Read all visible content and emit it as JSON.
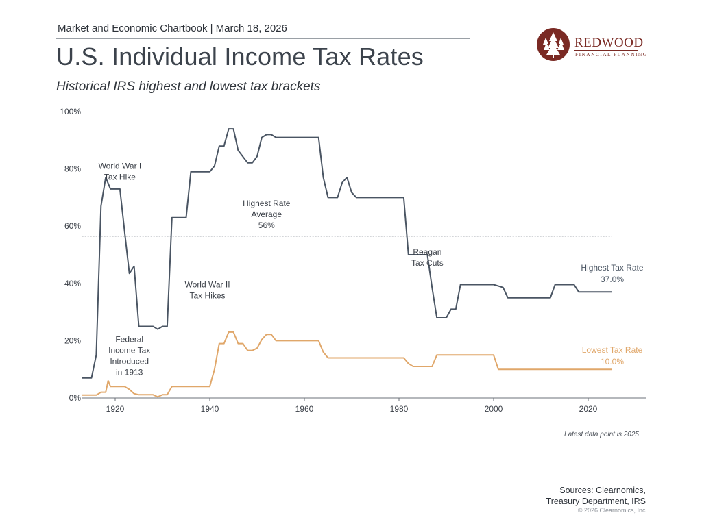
{
  "header": {
    "kicker": "Market and Economic Chartbook | March 18, 2026",
    "title": "U.S. Individual Income Tax Rates",
    "subtitle": "Historical IRS highest and lowest tax brackets"
  },
  "logo": {
    "brand": "REDWOOD",
    "tagline": "FINANCIAL PLANNING",
    "icon": "redwood-trees-icon",
    "color": "#7a2a24"
  },
  "colors": {
    "highest": "#4a5563",
    "lowest": "#e0a76a",
    "average_line": "#8a9099",
    "axis": "#6b7078"
  },
  "chart_data": {
    "type": "line",
    "title": "U.S. Individual Income Tax Rates",
    "xlabel": "",
    "ylabel": "",
    "xlim": [
      1913,
      2032
    ],
    "ylim": [
      0,
      100
    ],
    "x_ticks": [
      1920,
      1940,
      1960,
      1980,
      2000,
      2020
    ],
    "y_ticks": [
      0,
      20,
      40,
      60,
      80,
      100
    ],
    "y_tick_labels": [
      "0%",
      "20%",
      "40%",
      "60%",
      "80%",
      "100%"
    ],
    "grid": false,
    "series": [
      {
        "name": "Highest Tax Rate",
        "end_label": "37.0%",
        "points": [
          [
            1913,
            7
          ],
          [
            1915,
            7
          ],
          [
            1916,
            15
          ],
          [
            1917,
            67
          ],
          [
            1918,
            77
          ],
          [
            1919,
            73
          ],
          [
            1921,
            73
          ],
          [
            1922,
            58
          ],
          [
            1923,
            43.5
          ],
          [
            1924,
            46
          ],
          [
            1925,
            25
          ],
          [
            1928,
            25
          ],
          [
            1929,
            24
          ],
          [
            1930,
            25
          ],
          [
            1931,
            25
          ],
          [
            1932,
            63
          ],
          [
            1935,
            63
          ],
          [
            1936,
            79
          ],
          [
            1940,
            79
          ],
          [
            1941,
            81
          ],
          [
            1942,
            88
          ],
          [
            1943,
            88
          ],
          [
            1944,
            94
          ],
          [
            1945,
            94
          ],
          [
            1946,
            86.45
          ],
          [
            1948,
            82.13
          ],
          [
            1949,
            82.13
          ],
          [
            1950,
            84.36
          ],
          [
            1951,
            91
          ],
          [
            1952,
            92
          ],
          [
            1953,
            92
          ],
          [
            1954,
            91
          ],
          [
            1963,
            91
          ],
          [
            1964,
            77
          ],
          [
            1965,
            70
          ],
          [
            1967,
            70
          ],
          [
            1968,
            75.25
          ],
          [
            1969,
            77
          ],
          [
            1970,
            71.75
          ],
          [
            1971,
            70
          ],
          [
            1981,
            70
          ],
          [
            1982,
            50
          ],
          [
            1986,
            50
          ],
          [
            1987,
            38.5
          ],
          [
            1988,
            28
          ],
          [
            1990,
            28
          ],
          [
            1991,
            31
          ],
          [
            1992,
            31
          ],
          [
            1993,
            39.6
          ],
          [
            2000,
            39.6
          ],
          [
            2001,
            39.1
          ],
          [
            2002,
            38.6
          ],
          [
            2003,
            35
          ],
          [
            2012,
            35
          ],
          [
            2013,
            39.6
          ],
          [
            2017,
            39.6
          ],
          [
            2018,
            37
          ],
          [
            2025,
            37
          ]
        ]
      },
      {
        "name": "Lowest Tax Rate",
        "end_label": "10.0%",
        "points": [
          [
            1913,
            1
          ],
          [
            1916,
            1
          ],
          [
            1917,
            2
          ],
          [
            1918,
            2
          ],
          [
            1918.5,
            6
          ],
          [
            1919,
            4
          ],
          [
            1922,
            4
          ],
          [
            1923,
            3
          ],
          [
            1924,
            1.5
          ],
          [
            1925,
            1.125
          ],
          [
            1928,
            1.125
          ],
          [
            1929,
            0.375
          ],
          [
            1930,
            1.125
          ],
          [
            1931,
            1.125
          ],
          [
            1932,
            4
          ],
          [
            1940,
            4
          ],
          [
            1941,
            10
          ],
          [
            1942,
            19
          ],
          [
            1943,
            19
          ],
          [
            1944,
            23
          ],
          [
            1945,
            23
          ],
          [
            1946,
            19
          ],
          [
            1947,
            19
          ],
          [
            1948,
            16.6
          ],
          [
            1949,
            16.6
          ],
          [
            1950,
            17.4
          ],
          [
            1951,
            20.4
          ],
          [
            1952,
            22.2
          ],
          [
            1953,
            22.2
          ],
          [
            1954,
            20
          ],
          [
            1963,
            20
          ],
          [
            1964,
            16
          ],
          [
            1965,
            14
          ],
          [
            1981,
            14
          ],
          [
            1982,
            12
          ],
          [
            1983,
            11
          ],
          [
            1987,
            11
          ],
          [
            1988,
            15
          ],
          [
            2000,
            15
          ],
          [
            2001,
            10
          ],
          [
            2025,
            10
          ]
        ]
      }
    ],
    "reference_line": {
      "value": 56.5
    },
    "annotations": [
      {
        "lines": [
          "World War I",
          "Tax Hike"
        ],
        "x": 1921,
        "y": 80
      },
      {
        "lines": [
          "World War II",
          "Tax Hikes"
        ],
        "x": 1939.5,
        "y": 38.6
      },
      {
        "lines": [
          "Highest Rate",
          "Average",
          "56%"
        ],
        "x": 1952,
        "y": 67
      },
      {
        "lines": [
          "Reagan",
          "Tax Cuts"
        ],
        "x": 1986,
        "y": 50
      },
      {
        "lines": [
          "Federal",
          "Income Tax",
          "Introduced",
          "in 1913"
        ],
        "x": 1923,
        "y": 19.5
      }
    ]
  },
  "footer": {
    "note": "Latest data point is 2025",
    "sources_line1": "Sources: Clearnomics,",
    "sources_line2": "Treasury Department, IRS",
    "copyright": "© 2026 Clearnomics, Inc."
  }
}
